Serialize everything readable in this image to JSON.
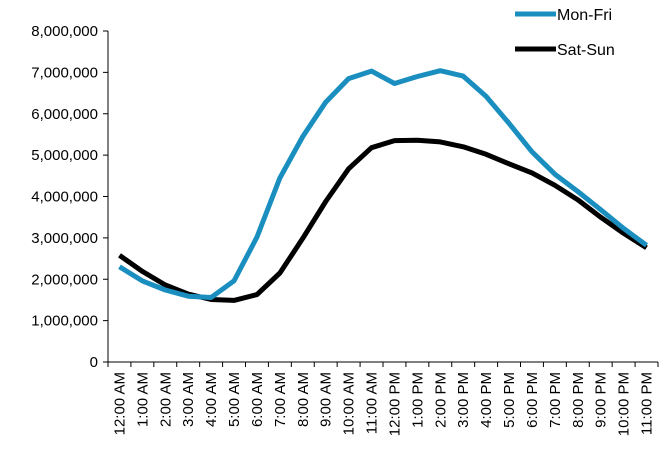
{
  "chart_data": {
    "type": "line",
    "title": "",
    "xlabel": "",
    "ylabel": "",
    "ylim": [
      0,
      8000000
    ],
    "yticks": [
      0,
      1000000,
      2000000,
      3000000,
      4000000,
      5000000,
      6000000,
      7000000,
      8000000
    ],
    "ytick_labels": [
      "0",
      "1,000,000",
      "2,000,000",
      "3,000,000",
      "4,000,000",
      "5,000,000",
      "6,000,000",
      "7,000,000",
      "8,000,000"
    ],
    "categories": [
      "12:00 AM",
      "1:00 AM",
      "2:00 AM",
      "3:00 AM",
      "4:00 AM",
      "5:00 AM",
      "6:00 AM",
      "7:00 AM",
      "8:00 AM",
      "9:00 AM",
      "10:00 AM",
      "11:00 AM",
      "12:00 PM",
      "1:00 PM",
      "2:00 PM",
      "3:00 PM",
      "4:00 PM",
      "5:00 PM",
      "6:00 PM",
      "7:00 PM",
      "8:00 PM",
      "9:00 PM",
      "10:00 PM",
      "11:00 PM"
    ],
    "grid": false,
    "legend_placement": "top-right",
    "series": [
      {
        "name": "Mon-Fri",
        "color": "#1a8fbf",
        "values": [
          2300000,
          1960000,
          1740000,
          1590000,
          1560000,
          1960000,
          3020000,
          4450000,
          5450000,
          6280000,
          6850000,
          7030000,
          6730000,
          6900000,
          7040000,
          6910000,
          6420000,
          5770000,
          5080000,
          4540000,
          4120000,
          3680000,
          3230000,
          2820000
        ]
      },
      {
        "name": "Sat-Sun",
        "color": "#000000",
        "values": [
          2580000,
          2190000,
          1860000,
          1640000,
          1510000,
          1490000,
          1630000,
          2150000,
          2990000,
          3880000,
          4670000,
          5180000,
          5350000,
          5360000,
          5320000,
          5200000,
          5020000,
          4790000,
          4570000,
          4270000,
          3920000,
          3500000,
          3110000,
          2760000
        ]
      }
    ]
  }
}
